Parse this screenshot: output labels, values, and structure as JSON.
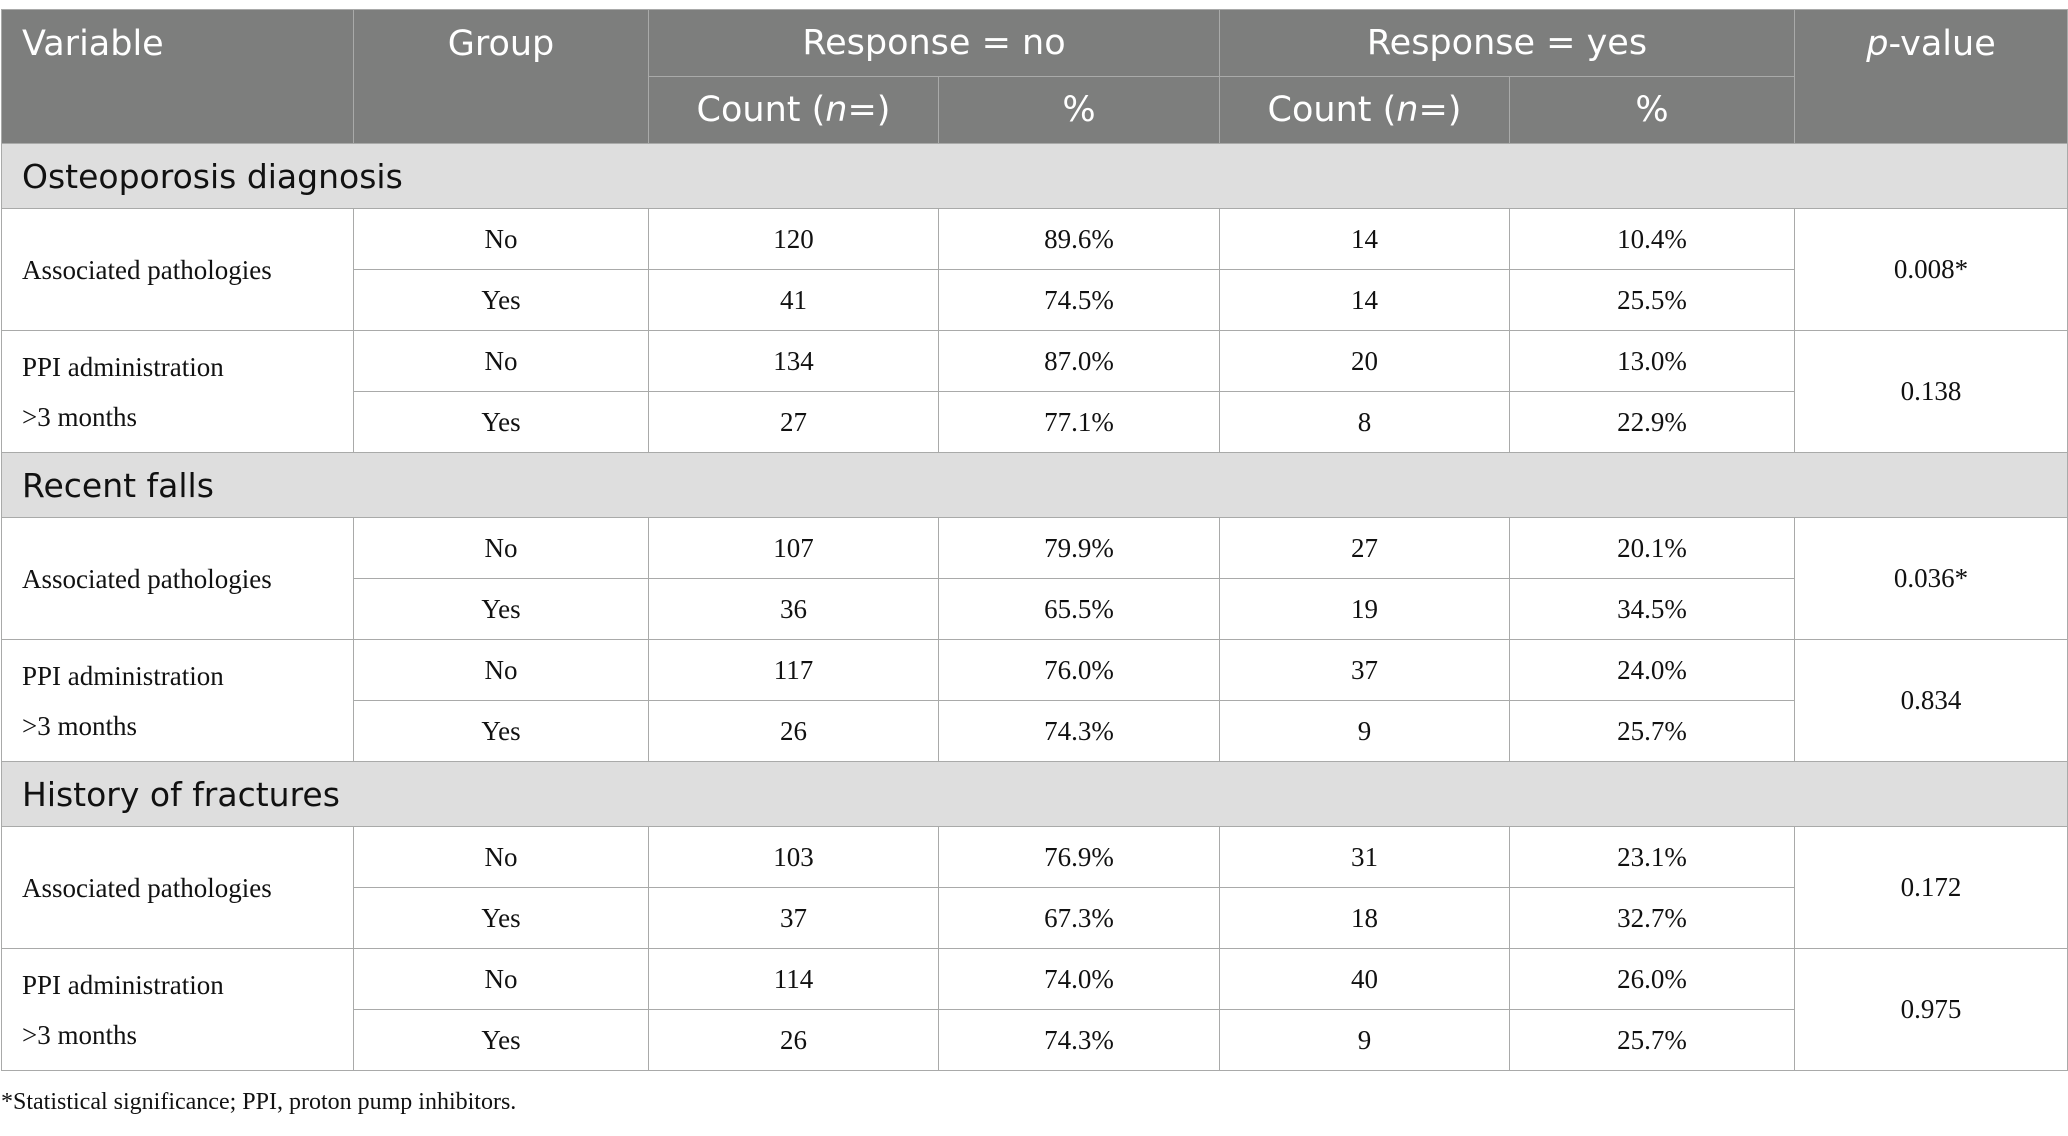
{
  "header": {
    "variable": "Variable",
    "group": "Group",
    "response_no": "Response = no",
    "response_yes": "Response = yes",
    "pvalue_italic": "p",
    "pvalue_rest": "-value",
    "count_prefix": "Count (",
    "count_n": "n",
    "count_suffix": "=)",
    "percent": "%"
  },
  "sections": [
    {
      "title": "Osteoporosis diagnosis",
      "vars": [
        {
          "label1": "Associated pathologies",
          "label2": "",
          "pvalue": "0.008*",
          "rows": [
            {
              "group": "No",
              "no_count": "120",
              "no_pct": "89.6%",
              "yes_count": "14",
              "yes_pct": "10.4%"
            },
            {
              "group": "Yes",
              "no_count": "41",
              "no_pct": "74.5%",
              "yes_count": "14",
              "yes_pct": "25.5%"
            }
          ]
        },
        {
          "label1": "PPI administration",
          "label2": ">3 months",
          "pvalue": "0.138",
          "rows": [
            {
              "group": "No",
              "no_count": "134",
              "no_pct": "87.0%",
              "yes_count": "20",
              "yes_pct": "13.0%"
            },
            {
              "group": "Yes",
              "no_count": "27",
              "no_pct": "77.1%",
              "yes_count": "8",
              "yes_pct": "22.9%"
            }
          ]
        }
      ]
    },
    {
      "title": "Recent falls",
      "vars": [
        {
          "label1": "Associated pathologies",
          "label2": "",
          "pvalue": "0.036*",
          "rows": [
            {
              "group": "No",
              "no_count": "107",
              "no_pct": "79.9%",
              "yes_count": "27",
              "yes_pct": "20.1%"
            },
            {
              "group": "Yes",
              "no_count": "36",
              "no_pct": "65.5%",
              "yes_count": "19",
              "yes_pct": "34.5%"
            }
          ]
        },
        {
          "label1": "PPI administration",
          "label2": ">3 months",
          "pvalue": "0.834",
          "rows": [
            {
              "group": "No",
              "no_count": "117",
              "no_pct": "76.0%",
              "yes_count": "37",
              "yes_pct": "24.0%"
            },
            {
              "group": "Yes",
              "no_count": "26",
              "no_pct": "74.3%",
              "yes_count": "9",
              "yes_pct": "25.7%"
            }
          ]
        }
      ]
    },
    {
      "title": "History of fractures",
      "vars": [
        {
          "label1": "Associated pathologies",
          "label2": "",
          "pvalue": "0.172",
          "rows": [
            {
              "group": "No",
              "no_count": "103",
              "no_pct": "76.9%",
              "yes_count": "31",
              "yes_pct": "23.1%"
            },
            {
              "group": "Yes",
              "no_count": "37",
              "no_pct": "67.3%",
              "yes_count": "18",
              "yes_pct": "32.7%"
            }
          ]
        },
        {
          "label1": "PPI administration",
          "label2": ">3 months",
          "pvalue": "0.975",
          "rows": [
            {
              "group": "No",
              "no_count": "114",
              "no_pct": "74.0%",
              "yes_count": "40",
              "yes_pct": "26.0%"
            },
            {
              "group": "Yes",
              "no_count": "26",
              "no_pct": "74.3%",
              "yes_count": "9",
              "yes_pct": "25.7%"
            }
          ]
        }
      ]
    }
  ],
  "footnote": "*Statistical significance; PPI, proton pump inhibitors."
}
